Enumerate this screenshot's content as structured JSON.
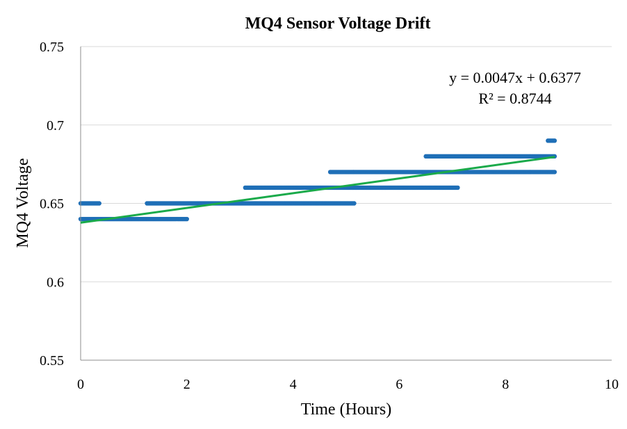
{
  "chart_data": {
    "type": "scatter",
    "title": "MQ4 Sensor Voltage Drift",
    "xlabel": "Time (Hours)",
    "ylabel": "MQ4 Voltage",
    "xlim": [
      0,
      10
    ],
    "ylim": [
      0.55,
      0.75
    ],
    "xticks": [
      0,
      2,
      4,
      6,
      8,
      10
    ],
    "yticks": [
      0.55,
      0.6,
      0.65,
      0.7,
      0.75
    ],
    "ytick_labels": [
      "0.55",
      "0.6",
      "0.65",
      "0.7",
      "0.75"
    ],
    "grid": "horizontal",
    "point_color": "#1f6fb7",
    "trendline_color": "#1aaa4a",
    "series": [
      {
        "segments": [
          {
            "y": 0.64,
            "x_start": 0.0,
            "x_end": 2.0
          },
          {
            "y": 0.65,
            "x_start": 0.0,
            "x_end": 0.35
          },
          {
            "y": 0.65,
            "x_start": 1.25,
            "x_end": 5.15
          },
          {
            "y": 0.66,
            "x_start": 3.1,
            "x_end": 7.1
          },
          {
            "y": 0.67,
            "x_start": 4.7,
            "x_end": 8.93
          },
          {
            "y": 0.68,
            "x_start": 6.5,
            "x_end": 8.93
          },
          {
            "y": 0.69,
            "x_start": 8.8,
            "x_end": 8.93
          }
        ]
      }
    ],
    "trendline": {
      "slope": 0.0047,
      "intercept": 0.6377,
      "x_range": [
        0,
        8.93
      ],
      "equation": "y = 0.0047x + 0.6377",
      "r_squared": "R² = 0.8744"
    }
  }
}
